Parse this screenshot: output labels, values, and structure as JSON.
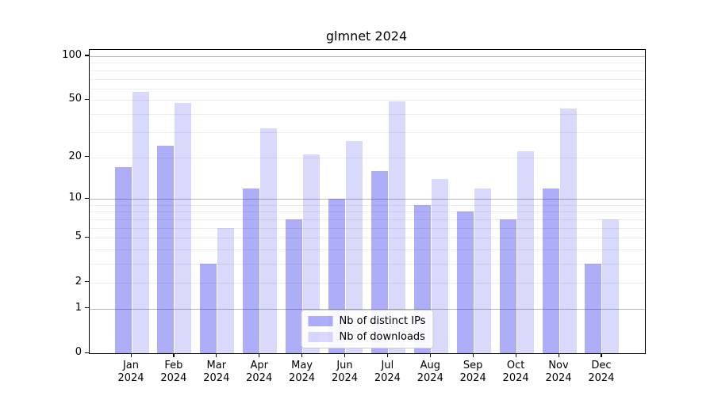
{
  "chart_data": {
    "type": "bar",
    "title": "glmnet 2024",
    "categories": [
      "Jan",
      "Feb",
      "Mar",
      "Apr",
      "May",
      "Jun",
      "Jul",
      "Aug",
      "Sep",
      "Oct",
      "Nov",
      "Dec"
    ],
    "year_label": "2024",
    "series": [
      {
        "name": "Nb of distinct IPs",
        "values": [
          17,
          24,
          3,
          12,
          7,
          10,
          16,
          9,
          8,
          7,
          12,
          3
        ],
        "color": "rgba(20,20,235,0.35)"
      },
      {
        "name": "Nb of downloads",
        "values": [
          57,
          48,
          6,
          32,
          21,
          26,
          49,
          14,
          12,
          22,
          44,
          7
        ],
        "color": "rgba(20,20,235,0.16)"
      }
    ],
    "xlabel": "",
    "ylabel": "",
    "y_axis": {
      "scale": "log1p",
      "ylim": [
        0,
        110.3
      ],
      "ticks": [
        0,
        1,
        2,
        5,
        10,
        20,
        50,
        100
      ],
      "major_gridlines": [
        1,
        10,
        100
      ],
      "minor_gridlines": [
        2,
        3,
        4,
        5,
        6,
        7,
        8,
        9,
        20,
        30,
        40,
        50,
        60,
        70,
        80,
        90
      ]
    },
    "grid": true,
    "legend_position": "lower center"
  },
  "colors": {
    "background": "#ffffff",
    "spine": "#000000",
    "major_grid": "#b5b5b5",
    "minor_grid": "#ececec",
    "ips_bar": "rgba(20,20,235,0.35)",
    "downloads_bar": "rgba(20,20,235,0.16)"
  }
}
